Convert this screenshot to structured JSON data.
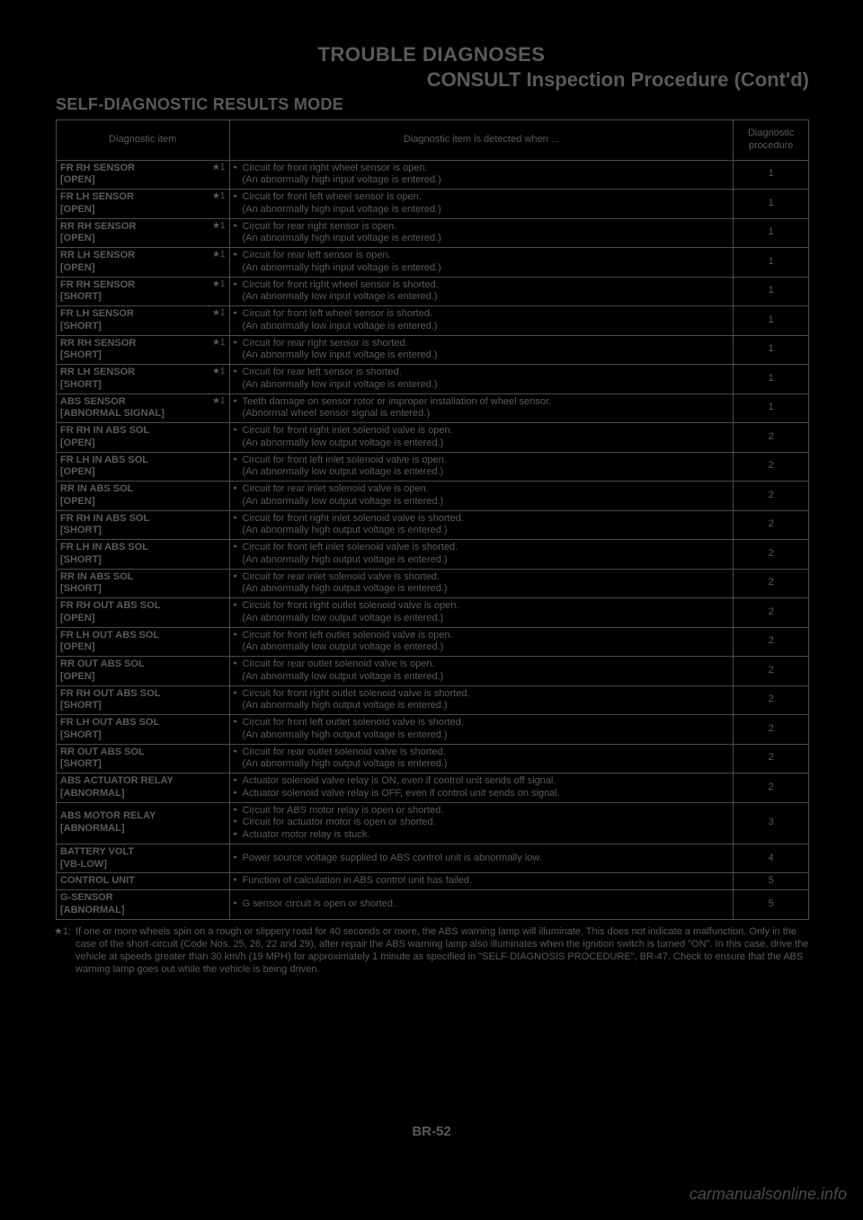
{
  "colors": {
    "document_background": "#000000",
    "text_color": "#5a5a5a",
    "border_color": "#4a4a4a",
    "watermark_color": "#4a4a4a"
  },
  "typography": {
    "body_font": "Arial, sans-serif",
    "title_fontsize": 22,
    "heading_fontsize": 18,
    "table_fontsize": 11,
    "footnote_fontsize": 11
  },
  "header": {
    "title_main": "TROUBLE DIAGNOSES",
    "title_sub": "CONSULT Inspection Procedure (Cont'd)",
    "section_heading": "SELF-DIAGNOSTIC RESULTS MODE"
  },
  "table": {
    "column_widths_pct": [
      23,
      67,
      10
    ],
    "headers": {
      "col1": "Diagnostic item",
      "col2": "Diagnostic item is detected when ...",
      "col3": "Diagnostic procedure"
    },
    "star_marker": "★1",
    "rows": [
      {
        "item": "FR RH SENSOR",
        "sub": "[OPEN]",
        "star": true,
        "lines": [
          "Circuit for front right wheel sensor is open."
        ],
        "parens": [
          "(An abnormally high input voltage is entered.)"
        ],
        "proc": "1"
      },
      {
        "item": "FR LH SENSOR",
        "sub": "[OPEN]",
        "star": true,
        "lines": [
          "Circuit for front left wheel sensor is open."
        ],
        "parens": [
          "(An abnormally high input voltage is entered.)"
        ],
        "proc": "1"
      },
      {
        "item": "RR RH SENSOR",
        "sub": "[OPEN]",
        "star": true,
        "lines": [
          "Circuit for rear right sensor is open."
        ],
        "parens": [
          "(An abnormally high input voltage is entered.)"
        ],
        "proc": "1"
      },
      {
        "item": "RR LH SENSOR",
        "sub": "[OPEN]",
        "star": true,
        "lines": [
          "Circuit for rear left sensor is open."
        ],
        "parens": [
          "(An abnormally high input voltage is entered.)"
        ],
        "proc": "1"
      },
      {
        "item": "FR RH SENSOR",
        "sub": "[SHORT]",
        "star": true,
        "lines": [
          "Circuit for front right wheel sensor is shorted."
        ],
        "parens": [
          "(An abnormally low input voltage is entered.)"
        ],
        "proc": "1"
      },
      {
        "item": "FR LH SENSOR",
        "sub": "[SHORT]",
        "star": true,
        "lines": [
          "Circuit for front left wheel sensor is shorted."
        ],
        "parens": [
          "(An abnormally low input voltage is entered.)"
        ],
        "proc": "1"
      },
      {
        "item": "RR RH SENSOR",
        "sub": "[SHORT]",
        "star": true,
        "lines": [
          "Circuit for rear right sensor is shorted."
        ],
        "parens": [
          "(An abnormally low input voltage is entered.)"
        ],
        "proc": "1"
      },
      {
        "item": "RR LH SENSOR",
        "sub": "[SHORT]",
        "star": true,
        "lines": [
          "Circuit for rear left sensor is shorted."
        ],
        "parens": [
          "(An abnormally low input voltage is entered.)"
        ],
        "proc": "1"
      },
      {
        "item": "ABS SENSOR",
        "sub": "[ABNORMAL SIGNAL]",
        "star": true,
        "lines": [
          "Teeth damage on sensor rotor or improper installation of wheel sensor."
        ],
        "parens": [
          "(Abnormal wheel sensor signal is entered.)"
        ],
        "proc": "1"
      },
      {
        "item": "FR RH IN ABS SOL",
        "sub": "[OPEN]",
        "star": false,
        "lines": [
          "Circuit for front right inlet solenoid valve is open."
        ],
        "parens": [
          "(An abnormally low output voltage is entered.)"
        ],
        "proc": "2"
      },
      {
        "item": "FR LH IN ABS SOL",
        "sub": "[OPEN]",
        "star": false,
        "lines": [
          "Circuit for front left inlet solenoid valve is open."
        ],
        "parens": [
          "(An abnormally low output voltage is entered.)"
        ],
        "proc": "2"
      },
      {
        "item": "RR IN ABS SOL",
        "sub": "[OPEN]",
        "star": false,
        "lines": [
          "Circuit for rear inlet solenoid valve is open."
        ],
        "parens": [
          "(An abnormally low output voltage is entered.)"
        ],
        "proc": "2"
      },
      {
        "item": "FR RH IN ABS SOL",
        "sub": "[SHORT]",
        "star": false,
        "lines": [
          "Circuit for front right inlet solenoid valve is shorted."
        ],
        "parens": [
          "(An abnormally high output voltage is entered.)"
        ],
        "proc": "2"
      },
      {
        "item": "FR LH IN ABS SOL",
        "sub": "[SHORT]",
        "star": false,
        "lines": [
          "Circuit for front left inlet solenoid valve is shorted."
        ],
        "parens": [
          "(An abnormally high output voltage is entered.)"
        ],
        "proc": "2"
      },
      {
        "item": "RR IN ABS SOL",
        "sub": "[SHORT]",
        "star": false,
        "lines": [
          "Circuit for rear inlet solenoid valve is shorted."
        ],
        "parens": [
          "(An abnormally high output voltage is entered.)"
        ],
        "proc": "2"
      },
      {
        "item": "FR RH OUT ABS SOL",
        "sub": "[OPEN]",
        "star": false,
        "lines": [
          "Circuit for front right outlet solenoid valve is open."
        ],
        "parens": [
          "(An abnormally low output voltage is entered.)"
        ],
        "proc": "2"
      },
      {
        "item": "FR LH OUT ABS SOL",
        "sub": "[OPEN]",
        "star": false,
        "lines": [
          "Circuit for front left outlet solenoid valve is open."
        ],
        "parens": [
          "(An abnormally low output voltage is entered.)"
        ],
        "proc": "2"
      },
      {
        "item": "RR OUT ABS SOL",
        "sub": "[OPEN]",
        "star": false,
        "lines": [
          "Circuit for rear outlet solenoid valve is open."
        ],
        "parens": [
          "(An abnormally low output voltage is entered.)"
        ],
        "proc": "2"
      },
      {
        "item": "FR RH OUT ABS SOL",
        "sub": "[SHORT]",
        "star": false,
        "lines": [
          "Circuit for front right outlet solenoid valve is shorted."
        ],
        "parens": [
          "(An abnormally high output voltage is entered.)"
        ],
        "proc": "2"
      },
      {
        "item": "FR LH OUT ABS SOL",
        "sub": "[SHORT]",
        "star": false,
        "lines": [
          "Circuit for front left outlet solenoid valve is shorted."
        ],
        "parens": [
          "(An abnormally high output voltage is entered.)"
        ],
        "proc": "2"
      },
      {
        "item": "RR OUT ABS SOL",
        "sub": "[SHORT]",
        "star": false,
        "lines": [
          "Circuit for rear outlet solenoid valve is shorted."
        ],
        "parens": [
          "(An abnormally high output voltage is entered.)"
        ],
        "proc": "2"
      },
      {
        "item": "ABS ACTUATOR RELAY",
        "sub": "[ABNORMAL]",
        "star": false,
        "lines": [
          "Actuator solenoid valve relay is ON, even if control unit sends off signal.",
          "Actuator solenoid valve relay is OFF, even if control unit sends on signal."
        ],
        "parens": [],
        "proc": "2"
      },
      {
        "item": "ABS MOTOR RELAY",
        "sub": "[ABNORMAL]",
        "star": false,
        "lines": [
          "Circuit for ABS motor relay is open or shorted.",
          "Circuit for actuator motor is open or shorted.",
          "Actuator motor relay is stuck."
        ],
        "parens": [],
        "proc": "3"
      },
      {
        "item": "BATTERY VOLT",
        "sub": "[VB-LOW]",
        "star": false,
        "lines": [
          "Power source voltage supplied to ABS control unit is abnormally low."
        ],
        "parens": [],
        "proc": "4"
      },
      {
        "item": "CONTROL UNIT",
        "sub": "",
        "star": false,
        "lines": [
          "Function of calculation in ABS control unit has failed."
        ],
        "parens": [],
        "proc": "5"
      },
      {
        "item": "G-SENSOR",
        "sub": "[ABNORMAL]",
        "star": false,
        "lines": [
          "G sensor circuit is open or shorted."
        ],
        "parens": [],
        "proc": "5"
      }
    ]
  },
  "footnote": {
    "marker": "★1:",
    "text": "If one or more wheels spin on a rough or slippery road for 40 seconds or more, the ABS warning lamp will illuminate. This does not indicate a malfunction. Only in the case of the short-circuit (Code Nos. 25, 26, 22 and 29), after repair the ABS warning lamp also illuminates when the ignition switch is turned \"ON\". In this case, drive the vehicle at speeds greater than 30 km/h (19 MPH) for approximately 1 minute as specified in \"SELF-DIAGNOSIS PROCEDURE\", BR-47. Check to ensure that the ABS warning lamp goes out while the vehicle is being driven."
  },
  "page_number": "BR-52",
  "watermark": "carmanualsonline.info"
}
